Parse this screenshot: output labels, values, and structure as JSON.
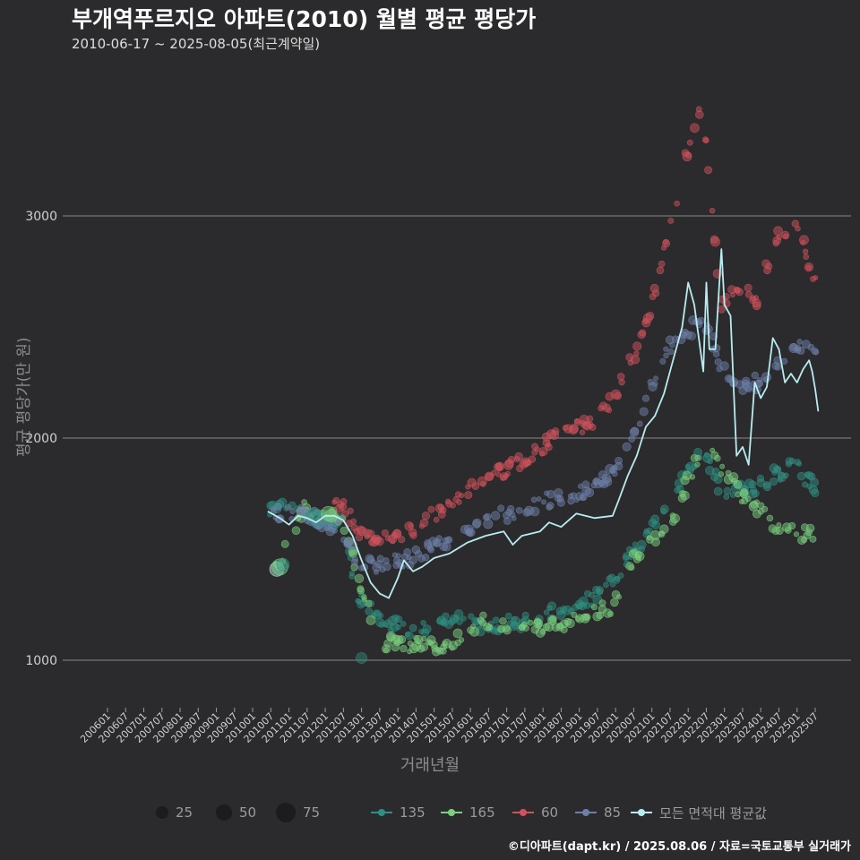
{
  "title": "부개역푸르지오 아파트(2010) 월별 평균 평당가",
  "subtitle": "2010-06-17 ~ 2025-08-05(최근계약일)",
  "footer": "©디아파트(dapt.kr) / 2025.08.06 / 자료=국토교통부 실거래가",
  "colors": {
    "background": "#2b2b2d",
    "grid": "#777777",
    "s135": "#2f8f82",
    "s165": "#7bd07f",
    "s60": "#d0525c",
    "s85": "#6d7fa8",
    "avg": "#b8ecf0"
  },
  "chart_data": {
    "type": "scatter",
    "title": "부개역푸르지오 아파트(2010) 월별 평균 평당가",
    "xlabel": "거래년월",
    "ylabel": "평균 평당가(만 원)",
    "ylim": [
      800,
      3600
    ],
    "yticks": [
      1000,
      2000,
      3000
    ],
    "grid": true,
    "x_tick_labels": [
      "200601",
      "200607",
      "200701",
      "200707",
      "200801",
      "200807",
      "200901",
      "200907",
      "201001",
      "201007",
      "201101",
      "201107",
      "201201",
      "201207",
      "201301",
      "201307",
      "201401",
      "201407",
      "201501",
      "201507",
      "201601",
      "201607",
      "201701",
      "201707",
      "201801",
      "201807",
      "201901",
      "201907",
      "202001",
      "202007",
      "202101",
      "202107",
      "202201",
      "202207",
      "202301",
      "202307",
      "202401",
      "202407",
      "202501",
      "202507"
    ],
    "x_start": "2006-01",
    "x_end": "2025-07",
    "legend_sizes": [
      25,
      50,
      75
    ],
    "series": [
      {
        "name": "135",
        "color_key": "s135",
        "anchors": [
          [
            "2010-06",
            1680
          ],
          [
            "2010-12",
            1690
          ],
          [
            "2011-06",
            1650
          ],
          [
            "2012-06",
            1620
          ],
          [
            "2012-12",
            1300
          ],
          [
            "2013-06",
            1180
          ],
          [
            "2014-06",
            1130
          ],
          [
            "2015-06",
            1180
          ],
          [
            "2016-06",
            1160
          ],
          [
            "2017-06",
            1170
          ],
          [
            "2018-06",
            1230
          ],
          [
            "2019-06",
            1280
          ],
          [
            "2019-12",
            1350
          ],
          [
            "2020-06",
            1480
          ],
          [
            "2020-12",
            1560
          ],
          [
            "2021-06",
            1700
          ],
          [
            "2021-12",
            1850
          ],
          [
            "2022-06",
            1950
          ],
          [
            "2022-12",
            1760
          ],
          [
            "2023-06",
            1760
          ],
          [
            "2023-12",
            1790
          ],
          [
            "2024-06",
            1840
          ],
          [
            "2024-12",
            1880
          ],
          [
            "2025-07",
            1780
          ]
        ]
      },
      {
        "name": "165",
        "color_key": "s165",
        "anchors": [
          [
            "2010-09",
            1420
          ],
          [
            "2011-06",
            1680
          ],
          [
            "2012-06",
            1650
          ],
          [
            "2013-06",
            1080
          ],
          [
            "2014-06",
            1070
          ],
          [
            "2015-06",
            1060
          ],
          [
            "2016-06",
            1180
          ],
          [
            "2017-06",
            1130
          ],
          [
            "2018-06",
            1160
          ],
          [
            "2019-06",
            1210
          ],
          [
            "2019-12",
            1240
          ],
          [
            "2020-06",
            1450
          ],
          [
            "2020-12",
            1520
          ],
          [
            "2021-06",
            1570
          ],
          [
            "2022-06",
            1980
          ],
          [
            "2023-06",
            1760
          ],
          [
            "2024-06",
            1600
          ],
          [
            "2025-07",
            1560
          ]
        ]
      },
      {
        "name": "60",
        "color_key": "s60",
        "anchors": [
          [
            "2011-12",
            1660
          ],
          [
            "2012-06",
            1700
          ],
          [
            "2012-12",
            1580
          ],
          [
            "2013-06",
            1520
          ],
          [
            "2014-06",
            1590
          ],
          [
            "2015-06",
            1700
          ],
          [
            "2016-06",
            1820
          ],
          [
            "2017-06",
            1890
          ],
          [
            "2018-06",
            2010
          ],
          [
            "2019-06",
            2080
          ],
          [
            "2019-12",
            2170
          ],
          [
            "2020-06",
            2330
          ],
          [
            "2020-12",
            2550
          ],
          [
            "2021-06",
            2900
          ],
          [
            "2021-12",
            3250
          ],
          [
            "2022-06",
            3500
          ],
          [
            "2022-12",
            2600
          ],
          [
            "2023-06",
            2670
          ],
          [
            "2023-12",
            2620
          ],
          [
            "2024-06",
            2900
          ],
          [
            "2024-12",
            2980
          ],
          [
            "2025-07",
            2700
          ]
        ]
      },
      {
        "name": "85",
        "color_key": "s85",
        "anchors": [
          [
            "2010-07",
            1670
          ],
          [
            "2011-06",
            1650
          ],
          [
            "2012-06",
            1600
          ],
          [
            "2012-12",
            1430
          ],
          [
            "2013-06",
            1420
          ],
          [
            "2014-06",
            1460
          ],
          [
            "2015-06",
            1540
          ],
          [
            "2016-06",
            1620
          ],
          [
            "2017-06",
            1690
          ],
          [
            "2018-06",
            1730
          ],
          [
            "2019-06",
            1770
          ],
          [
            "2019-12",
            1850
          ],
          [
            "2020-06",
            1990
          ],
          [
            "2020-12",
            2200
          ],
          [
            "2021-06",
            2400
          ],
          [
            "2021-12",
            2450
          ],
          [
            "2022-06",
            2550
          ],
          [
            "2022-12",
            2300
          ],
          [
            "2023-06",
            2240
          ],
          [
            "2023-12",
            2250
          ],
          [
            "2024-06",
            2320
          ],
          [
            "2024-12",
            2420
          ],
          [
            "2025-07",
            2420
          ]
        ]
      }
    ],
    "average_series": {
      "name": "모든 면적대 평균값",
      "color_key": "avg",
      "points": [
        [
          "2010-06",
          1670
        ],
        [
          "2010-10",
          1640
        ],
        [
          "2011-01",
          1610
        ],
        [
          "2011-04",
          1650
        ],
        [
          "2011-07",
          1640
        ],
        [
          "2011-10",
          1620
        ],
        [
          "2012-01",
          1650
        ],
        [
          "2012-04",
          1650
        ],
        [
          "2012-07",
          1630
        ],
        [
          "2012-10",
          1560
        ],
        [
          "2013-01",
          1450
        ],
        [
          "2013-04",
          1350
        ],
        [
          "2013-07",
          1300
        ],
        [
          "2013-10",
          1280
        ],
        [
          "2014-01",
          1370
        ],
        [
          "2014-03",
          1450
        ],
        [
          "2014-06",
          1400
        ],
        [
          "2014-09",
          1420
        ],
        [
          "2015-01",
          1460
        ],
        [
          "2015-06",
          1480
        ],
        [
          "2015-12",
          1530
        ],
        [
          "2016-06",
          1560
        ],
        [
          "2016-12",
          1580
        ],
        [
          "2017-03",
          1520
        ],
        [
          "2017-06",
          1560
        ],
        [
          "2017-12",
          1580
        ],
        [
          "2018-03",
          1620
        ],
        [
          "2018-07",
          1600
        ],
        [
          "2018-12",
          1660
        ],
        [
          "2019-06",
          1640
        ],
        [
          "2019-12",
          1650
        ],
        [
          "2020-02",
          1720
        ],
        [
          "2020-05",
          1830
        ],
        [
          "2020-08",
          1920
        ],
        [
          "2020-11",
          2050
        ],
        [
          "2021-02",
          2100
        ],
        [
          "2021-05",
          2200
        ],
        [
          "2021-08",
          2350
        ],
        [
          "2021-11",
          2500
        ],
        [
          "2022-01",
          2700
        ],
        [
          "2022-03",
          2600
        ],
        [
          "2022-06",
          2300
        ],
        [
          "2022-07",
          2700
        ],
        [
          "2022-08",
          2400
        ],
        [
          "2022-10",
          2400
        ],
        [
          "2022-12",
          2850
        ],
        [
          "2023-01",
          2600
        ],
        [
          "2023-03",
          2550
        ],
        [
          "2023-05",
          1920
        ],
        [
          "2023-07",
          1960
        ],
        [
          "2023-09",
          1880
        ],
        [
          "2023-11",
          2250
        ],
        [
          "2024-01",
          2180
        ],
        [
          "2024-03",
          2230
        ],
        [
          "2024-05",
          2450
        ],
        [
          "2024-07",
          2400
        ],
        [
          "2024-09",
          2250
        ],
        [
          "2024-11",
          2290
        ],
        [
          "2025-01",
          2250
        ],
        [
          "2025-03",
          2310
        ],
        [
          "2025-05",
          2350
        ],
        [
          "2025-06",
          2300
        ],
        [
          "2025-07",
          2220
        ],
        [
          "2025-08",
          2120
        ]
      ]
    }
  },
  "legend": {
    "size_labels": [
      "25",
      "50",
      "75"
    ],
    "series_labels": [
      "135",
      "165",
      "60",
      "85",
      "모든 면적대 평균값"
    ]
  }
}
